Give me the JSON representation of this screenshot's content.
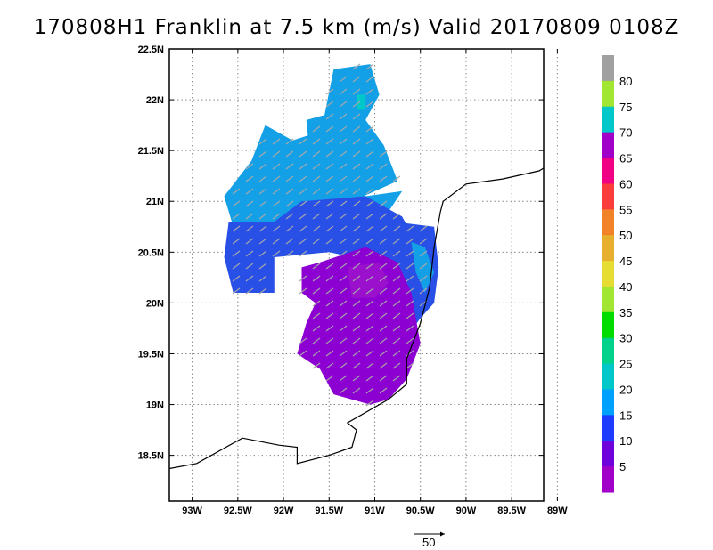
{
  "title": "170808H1 Franklin at 7.5 km (m/s) Valid 20170809 0108Z",
  "map": {
    "lat_ticks": [
      "22.5N",
      "22N",
      "21.5N",
      "21N",
      "20.5N",
      "20N",
      "19.5N",
      "19N",
      "18.5N"
    ],
    "lon_ticks": [
      "93W",
      "92.5W",
      "92W",
      "91.5W",
      "91W",
      "90.5W",
      "90W",
      "89.5W",
      "89W"
    ],
    "lat_range": [
      18.05,
      22.5
    ],
    "lon_range": [
      -93.25,
      -89.15
    ],
    "gridlines": true,
    "coastline_color": "#000000"
  },
  "colorbar": {
    "labels": [
      "5",
      "10",
      "15",
      "20",
      "25",
      "30",
      "35",
      "40",
      "45",
      "50",
      "55",
      "60",
      "65",
      "70",
      "75",
      "80"
    ],
    "colors": [
      "#a000c8",
      "#6e00dc",
      "#1e3cff",
      "#00a0ff",
      "#00c8c8",
      "#00d28c",
      "#00dc00",
      "#a0e632",
      "#e6dc32",
      "#e6af2d",
      "#f08228",
      "#fa3c3c",
      "#f00082",
      "#a000c8",
      "#00c8c8",
      "#a0e632",
      "#a0a0a0"
    ]
  },
  "wind_field": {
    "colors": {
      "low": "#8c00d2",
      "mid": "#2850e6",
      "high": "#14a0e6",
      "highest": "#00c8c8",
      "arrow": "#a8a8a8"
    },
    "arrow_direction": "southwest"
  },
  "reference_vector": {
    "label": "50"
  }
}
